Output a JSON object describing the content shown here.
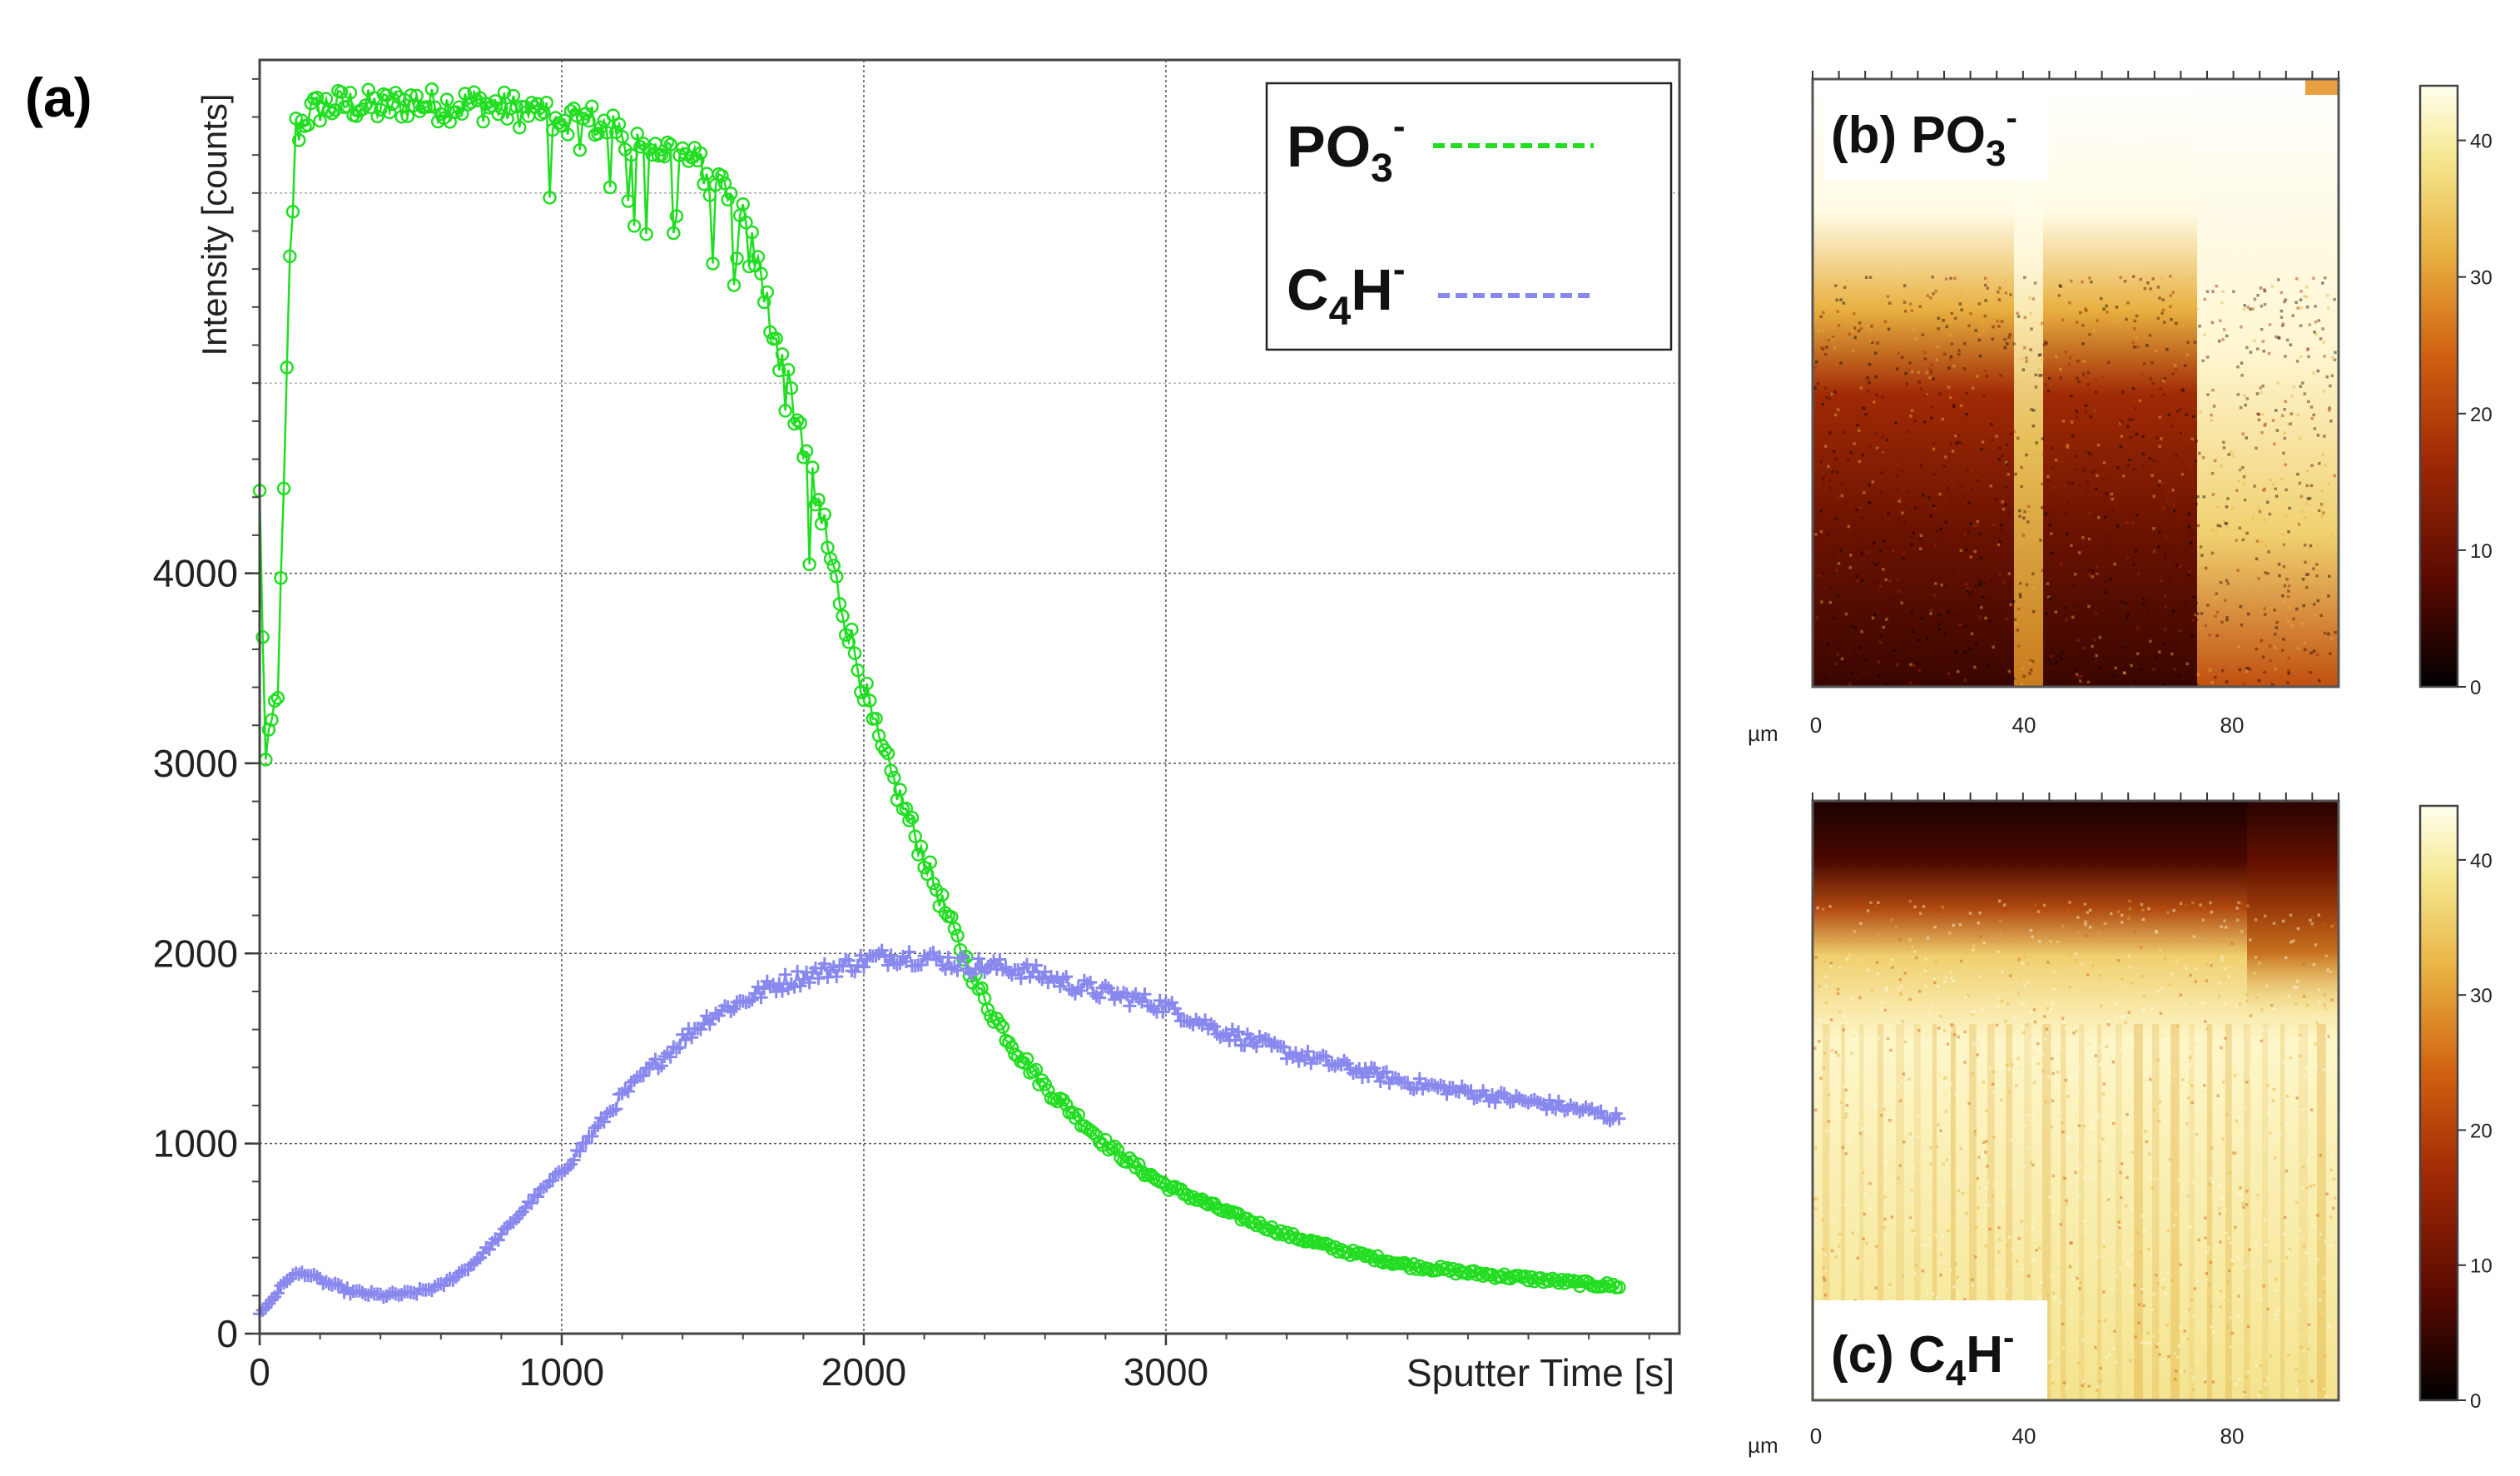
{
  "chart_data": [
    {
      "panel": "(a)",
      "type": "line",
      "xlabel": "Sputter Time [s]",
      "ylabel": "Intensity [counts]",
      "xlim": [
        0,
        4700
      ],
      "ylim": [
        0,
        6700
      ],
      "x_ticks": [
        0,
        1000,
        2000,
        3000
      ],
      "x_tick_labels": [
        "0",
        "1000",
        "2000",
        "3000"
      ],
      "y_ticks": [
        0,
        1000,
        2000,
        3000,
        4000
      ],
      "y_tick_labels": [
        "0",
        "1000",
        "2000",
        "3000",
        "4000"
      ],
      "grid": true,
      "legend_position": "top-right",
      "series": [
        {
          "name": "PO3-",
          "legend_main": "PO",
          "legend_sub": "3",
          "legend_sup": "-",
          "color": "#22dd22",
          "marker": "circle",
          "x": [
            0,
            20,
            40,
            60,
            80,
            100,
            120,
            150,
            200,
            300,
            400,
            500,
            600,
            700,
            800,
            900,
            1000,
            1100,
            1200,
            1300,
            1400,
            1500,
            1600,
            1650,
            1700,
            1750,
            1800,
            1850,
            1900,
            1950,
            2000,
            2050,
            2100,
            2200,
            2300,
            2400,
            2500,
            2600,
            2700,
            2800,
            2900,
            3000,
            3200,
            3400,
            3600,
            3800,
            4000,
            4200,
            4400,
            4500
          ],
          "y": [
            4400,
            3000,
            3200,
            3400,
            4400,
            5600,
            6300,
            6400,
            6450,
            6470,
            6450,
            6480,
            6460,
            6470,
            6450,
            6420,
            6400,
            6380,
            6300,
            6250,
            6200,
            6100,
            5900,
            5600,
            5300,
            5000,
            4700,
            4350,
            4000,
            3700,
            3400,
            3100,
            2900,
            2500,
            2100,
            1750,
            1500,
            1300,
            1150,
            1000,
            880,
            780,
            640,
            520,
            430,
            360,
            320,
            290,
            260,
            250
          ]
        },
        {
          "name": "C4H-",
          "legend_main": "C",
          "legend_sub": "4",
          "legend_sup": "-",
          "legend_mid": "H",
          "color": "#8888ee",
          "marker": "plus",
          "x": [
            0,
            50,
            100,
            150,
            200,
            300,
            400,
            500,
            600,
            700,
            800,
            900,
            1000,
            1100,
            1200,
            1300,
            1400,
            1500,
            1600,
            1700,
            1800,
            1900,
            2000,
            2100,
            2200,
            2300,
            2400,
            2500,
            2600,
            2700,
            2800,
            2900,
            3000,
            3100,
            3200,
            3400,
            3600,
            3800,
            4000,
            4200,
            4400,
            4500
          ],
          "y": [
            100,
            200,
            300,
            320,
            280,
            220,
            200,
            210,
            250,
            360,
            520,
            700,
            850,
            1050,
            1250,
            1400,
            1550,
            1680,
            1750,
            1830,
            1880,
            1920,
            1960,
            1990,
            1980,
            1950,
            1930,
            1920,
            1880,
            1830,
            1790,
            1760,
            1720,
            1650,
            1580,
            1480,
            1400,
            1320,
            1270,
            1220,
            1170,
            1130
          ]
        }
      ]
    },
    {
      "panel": "(b)",
      "type": "heatmap",
      "title_main": "(b) PO",
      "title_sub": "3",
      "title_sup": "-",
      "xlabel": "µm",
      "x_tick_labels": [
        "0",
        "40",
        "80"
      ],
      "colorbar_ticks": [
        "0",
        "10",
        "20",
        "30",
        "40"
      ],
      "colormap": [
        "#000000",
        "#5a0a00",
        "#a02a05",
        "#d06010",
        "#e8b040",
        "#f5e890",
        "#ffffee"
      ]
    },
    {
      "panel": "(c)",
      "type": "heatmap",
      "title_main": "(c) C",
      "title_sub": "4",
      "title_mid": "H",
      "title_sup": "-",
      "xlabel": "µm",
      "x_tick_labels": [
        "0",
        "40",
        "80"
      ],
      "colorbar_ticks": [
        "0",
        "10",
        "20",
        "30",
        "40"
      ],
      "colormap": [
        "#000000",
        "#5a0a00",
        "#a02a05",
        "#d06010",
        "#e8b040",
        "#f5e890",
        "#ffffee"
      ]
    }
  ]
}
